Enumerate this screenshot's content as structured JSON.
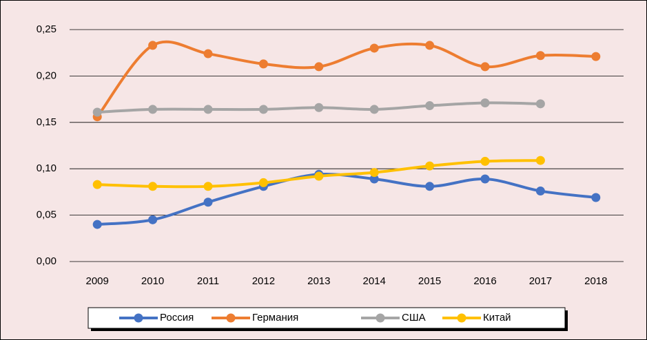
{
  "chart_data": {
    "type": "line",
    "smooth": true,
    "grid": true,
    "legend": "bottom",
    "categories": [
      "2009",
      "2010",
      "2011",
      "2012",
      "2013",
      "2014",
      "2015",
      "2016",
      "2017",
      "2018"
    ],
    "series": [
      {
        "name": "Россия",
        "color": "#4472c4",
        "values": [
          0.04,
          0.045,
          0.064,
          0.081,
          0.094,
          0.089,
          0.081,
          0.089,
          0.076,
          0.069
        ]
      },
      {
        "name": "Германия",
        "color": "#ed7d31",
        "values": [
          0.156,
          0.233,
          0.224,
          0.213,
          0.21,
          0.23,
          0.233,
          0.21,
          0.222,
          0.221
        ]
      },
      {
        "name": "США",
        "color": "#a5a5a5",
        "values": [
          0.161,
          0.164,
          0.164,
          0.164,
          0.166,
          0.164,
          0.168,
          0.171,
          0.17,
          null
        ]
      },
      {
        "name": "Китай",
        "color": "#ffc000",
        "values": [
          0.083,
          0.081,
          0.081,
          0.085,
          0.092,
          0.096,
          0.103,
          0.108,
          0.109,
          null
        ]
      }
    ],
    "ylim": [
      0,
      0.25
    ],
    "yticks": [
      {
        "value": 0,
        "label": "0,00"
      },
      {
        "value": 0.05,
        "label": "0,05"
      },
      {
        "value": 0.1,
        "label": "0,10"
      },
      {
        "value": 0.15,
        "label": "0,15"
      },
      {
        "value": 0.2,
        "label": "0,20"
      },
      {
        "value": 0.25,
        "label": "0,25"
      }
    ]
  }
}
